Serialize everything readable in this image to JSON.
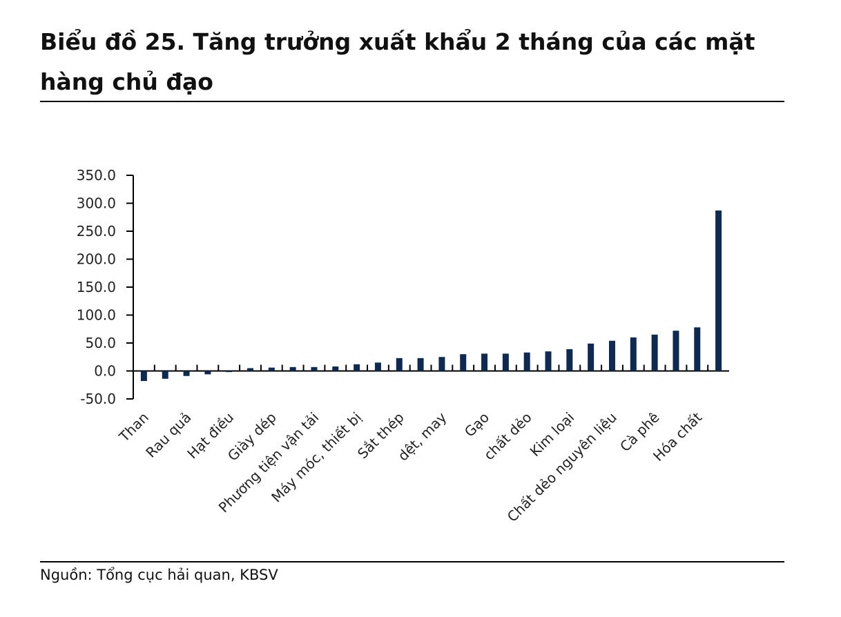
{
  "title": "Biểu đồ 25. Tăng trưởng xuất khẩu 2 tháng của các mặt hàng chủ đạo",
  "source": "Nguồn: Tổng cục hải quan, KBSV",
  "colors": {
    "bar": "#0f2a52",
    "axis": "#000000"
  },
  "chart_data": {
    "type": "bar",
    "title": "",
    "xlabel": "",
    "ylabel": "",
    "ylim": [
      -50,
      350
    ],
    "yticks": [
      -50,
      0,
      50,
      100,
      150,
      200,
      250,
      300,
      350
    ],
    "ytick_labels": [
      "-50.0",
      "0.0",
      "50.0",
      "100.0",
      "150.0",
      "200.0",
      "250.0",
      "300.0",
      "350.0"
    ],
    "grid": false,
    "legend": "none",
    "categories": [
      "Than",
      "",
      "Rau quả",
      "",
      "Hạt điều",
      "",
      "Giày dép",
      "",
      "Phương tiện vận tải",
      "",
      "Máy móc, thiết bị",
      "",
      "Sắt thép",
      "",
      "dệt, may",
      "",
      "Gạo",
      "",
      "chất dẻo",
      "",
      "Kim loại",
      "",
      "Chất dẻo nguyên liệu",
      "",
      "Cà phê",
      "",
      "Hóa chất",
      ""
    ],
    "values": [
      -18,
      -14,
      -9,
      -6,
      -2,
      5,
      6,
      7,
      7,
      8,
      12,
      15,
      23,
      23,
      25,
      30,
      31,
      31,
      33,
      35,
      39,
      49,
      54,
      60,
      65,
      72,
      78,
      287
    ]
  }
}
